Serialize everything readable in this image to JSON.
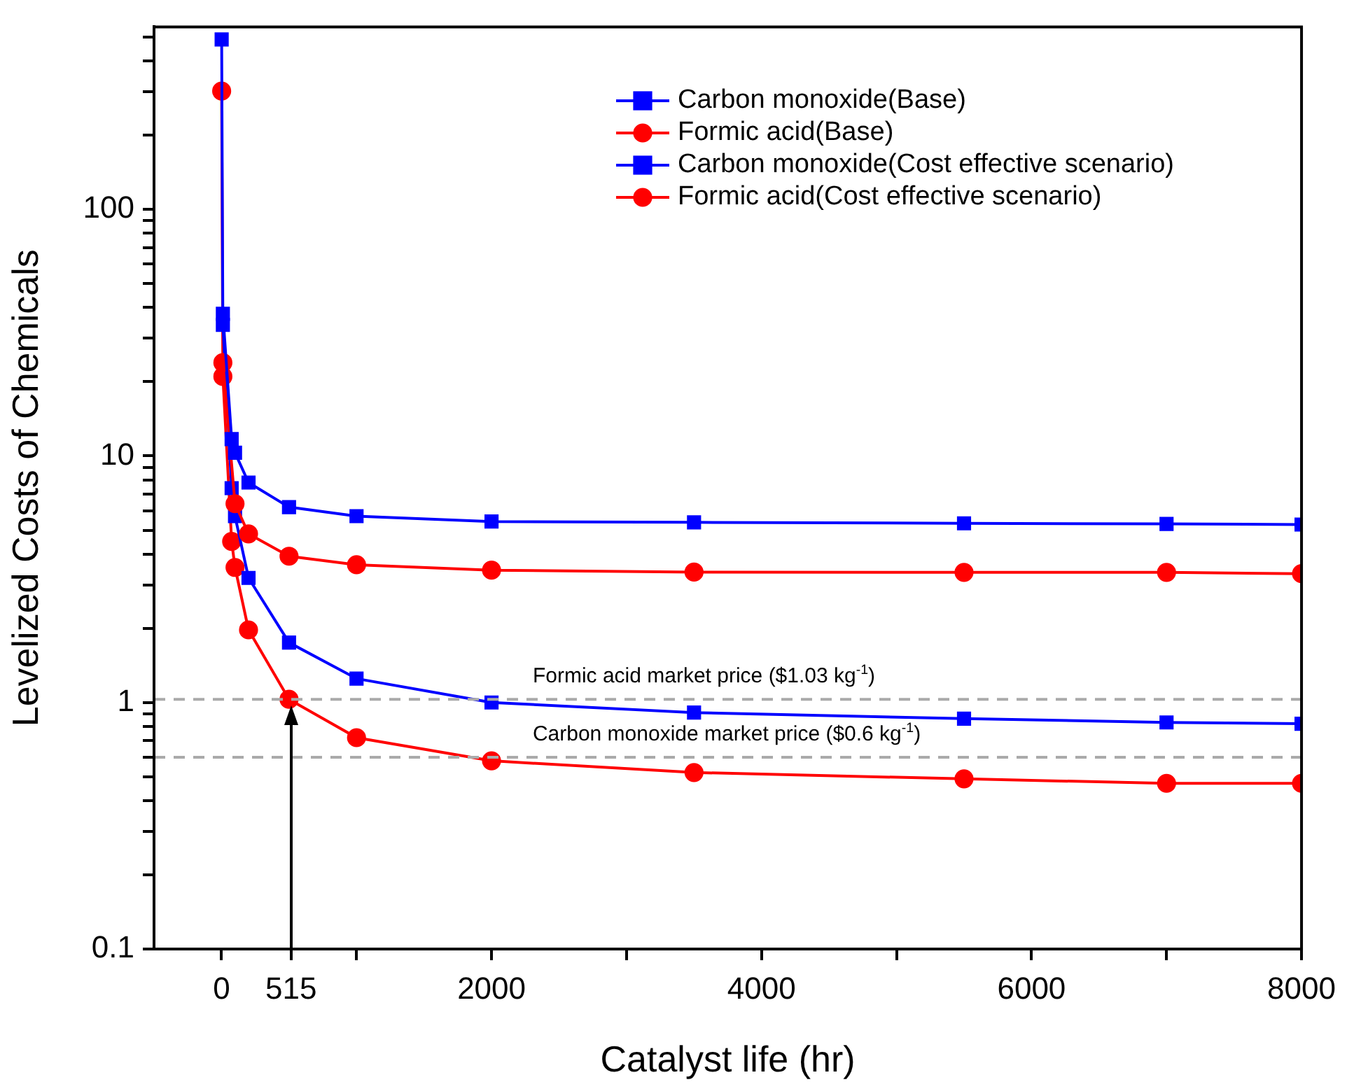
{
  "chart_data": {
    "type": "line",
    "xlabel": "Catalyst life (hr)",
    "ylabel": "Levelized Costs of Chemicals",
    "x": [
      1,
      10,
      75,
      100,
      200,
      500,
      1000,
      2000,
      3500,
      5500,
      7000,
      8000
    ],
    "series": [
      {
        "name": "Carbon monoxide(Base)",
        "color": "#0000ff",
        "marker": "square",
        "values": [
          null,
          37.7,
          11.7,
          10.3,
          7.8,
          6.2,
          5.7,
          5.42,
          5.38,
          5.33,
          5.3,
          5.27
        ]
      },
      {
        "name": "Formic acid(Base)",
        "color": "#ff0000",
        "marker": "circle",
        "values": [
          null,
          23.9,
          null,
          6.4,
          4.83,
          3.92,
          3.62,
          3.44,
          3.38,
          3.37,
          3.37,
          3.33
        ]
      },
      {
        "name": "Carbon monoxide(Cost effective scenario)",
        "color": "#0000ff",
        "marker": "square",
        "values": [
          489,
          34,
          7.4,
          5.7,
          3.2,
          1.75,
          1.25,
          1.0,
          0.91,
          0.86,
          0.83,
          0.82
        ]
      },
      {
        "name": "Formic acid(Cost effective scenario)",
        "color": "#ff0000",
        "marker": "circle",
        "values": [
          302,
          21,
          4.5,
          3.53,
          1.97,
          1.03,
          0.72,
          0.58,
          0.52,
          0.49,
          0.47,
          0.47
        ]
      }
    ],
    "log": "y",
    "xlim": [
      -500,
      8000
    ],
    "xticks": [
      0,
      515,
      {
        "value": 1000,
        "label": null
      },
      2000,
      {
        "value": 3000,
        "label": null
      },
      4000,
      {
        "value": 5000,
        "label": null
      },
      6000,
      {
        "value": 7000,
        "label": null
      },
      8000
    ],
    "ylim": [
      0.1,
      550
    ],
    "yticks": [
      0.1,
      {
        "value": 0.2,
        "label": null
      },
      {
        "value": 0.3,
        "label": null
      },
      {
        "value": 0.4,
        "label": null
      },
      {
        "value": 0.5,
        "label": null
      },
      {
        "value": 0.6,
        "label": null
      },
      {
        "value": 0.7,
        "label": null
      },
      {
        "value": 0.8,
        "label": null
      },
      {
        "value": 0.9,
        "label": null
      },
      1,
      {
        "value": 2,
        "label": null
      },
      {
        "value": 3,
        "label": null
      },
      {
        "value": 4,
        "label": null
      },
      {
        "value": 5,
        "label": null
      },
      {
        "value": 6,
        "label": null
      },
      {
        "value": 7,
        "label": null
      },
      {
        "value": 8,
        "label": null
      },
      {
        "value": 9,
        "label": null
      },
      10,
      {
        "value": 20,
        "label": null
      },
      {
        "value": 30,
        "label": null
      },
      {
        "value": 40,
        "label": null
      },
      {
        "value": 50,
        "label": null
      },
      {
        "value": 60,
        "label": null
      },
      {
        "value": 70,
        "label": null
      },
      {
        "value": 80,
        "label": null
      },
      {
        "value": 90,
        "label": null
      },
      100,
      {
        "value": 200,
        "label": null
      },
      {
        "value": 300,
        "label": null
      },
      {
        "value": 400,
        "label": null
      },
      {
        "value": 500,
        "label": null
      }
    ],
    "ref_lines": [
      {
        "axis": "y",
        "value": 1.03,
        "label": "Formic acid market price ($1.03 kg$^{-1}$)",
        "color": "#aaaaaa",
        "line_style": "dashed"
      },
      {
        "axis": "y",
        "value": 0.6,
        "label": "Carbon monoxide market price ($0.6 kg$^{-1}$)",
        "color": "#aaaaaa",
        "line_style": "dashed"
      },
      {
        "axis": "x",
        "value": 515,
        "color": "#000000",
        "line_style": "solid"
      }
    ],
    "grid": false,
    "legend": "top right",
    "line_style": "solid"
  }
}
